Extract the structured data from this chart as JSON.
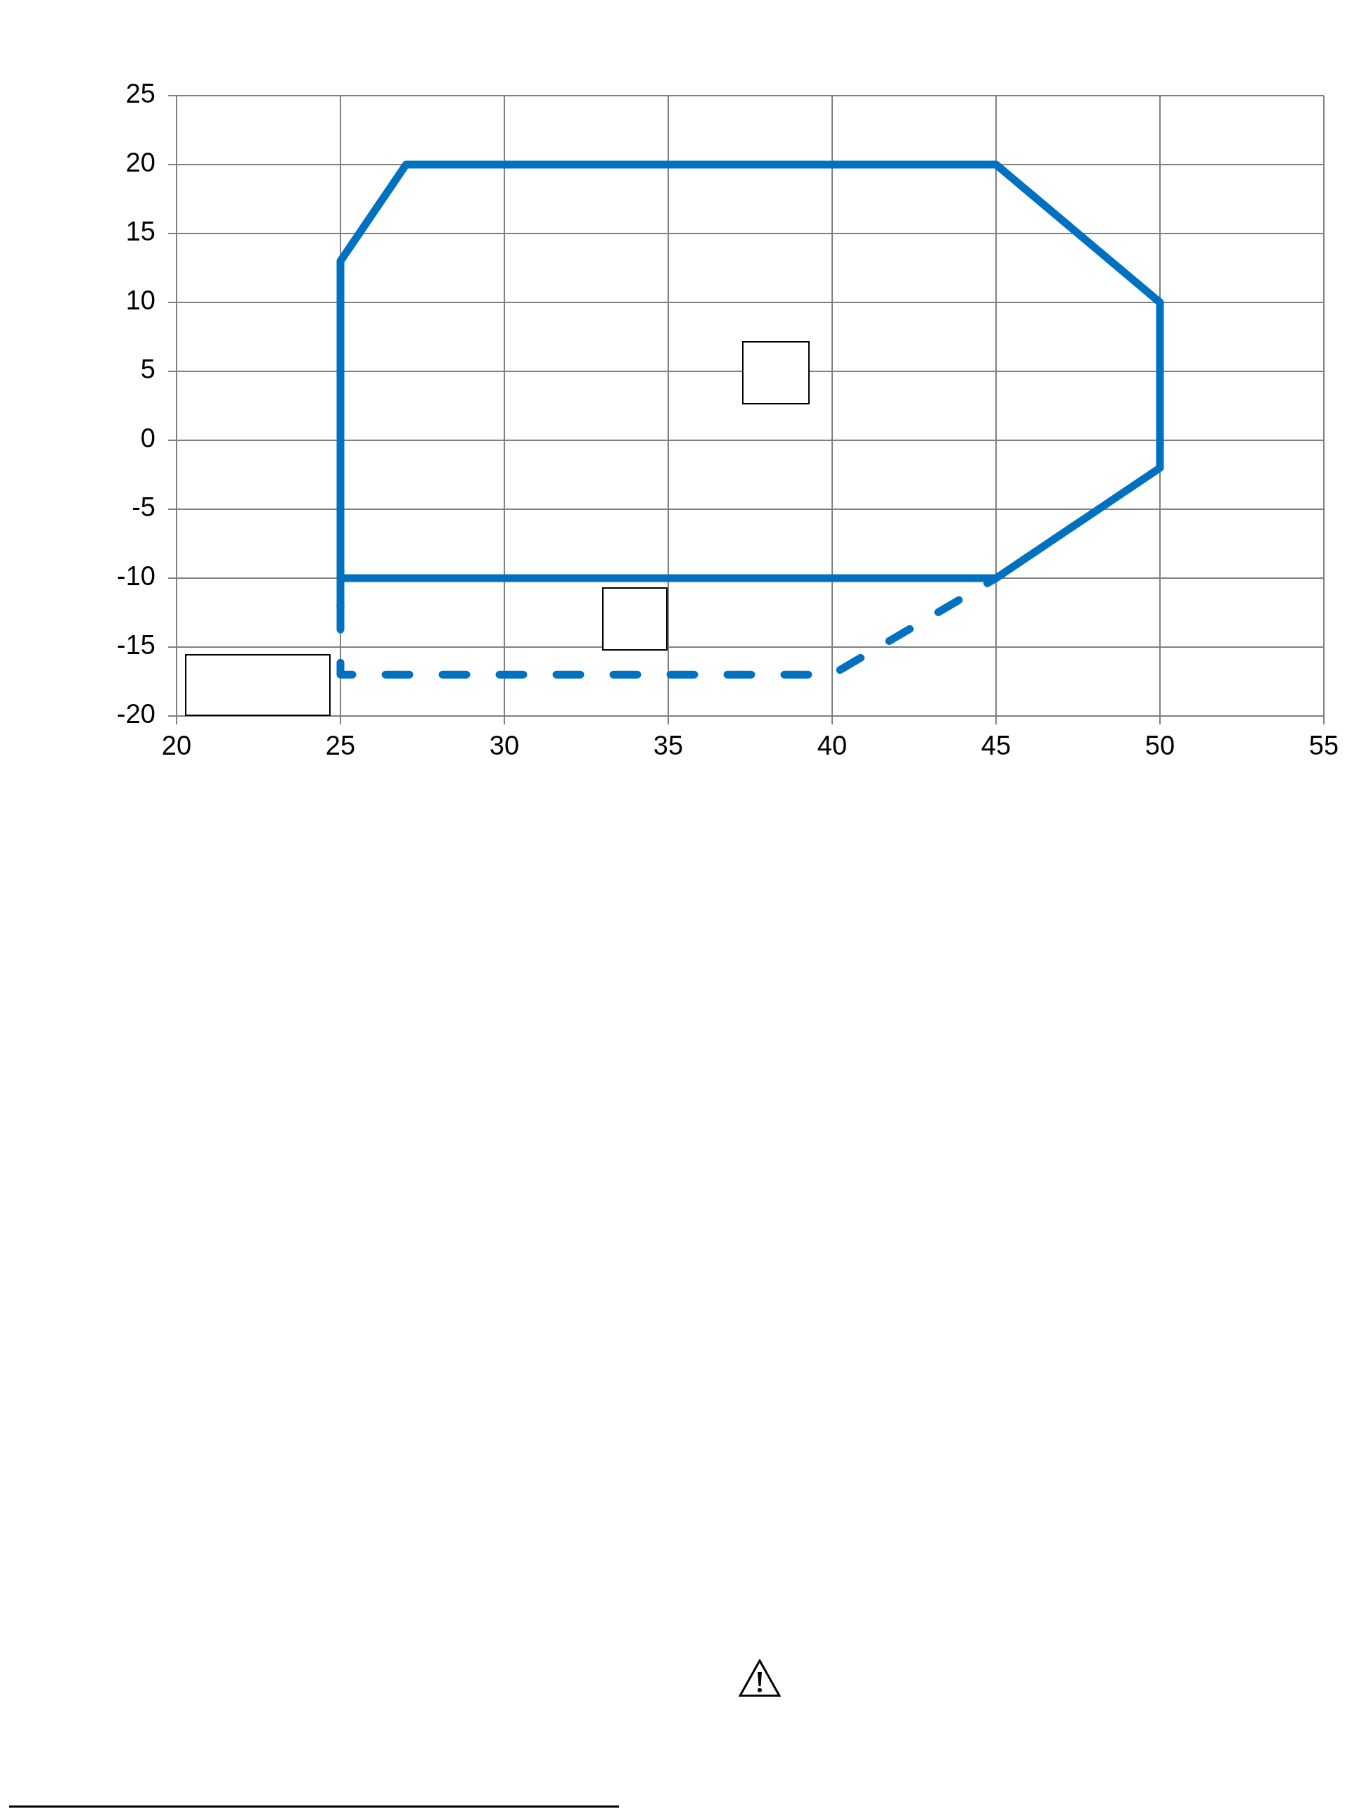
{
  "chart_data": {
    "type": "line",
    "series": [
      {
        "color": "#0070c0",
        "line_style": "solid",
        "x": [
          25,
          25,
          27,
          45,
          50,
          50,
          45,
          25
        ],
        "values": [
          -12,
          13,
          20,
          20,
          10,
          -2,
          -10,
          -10
        ]
      },
      {
        "color": "#0070c0",
        "line_style": "dashed",
        "x": [
          25,
          25,
          40,
          45
        ],
        "values": [
          -12,
          -17,
          -17,
          -10
        ]
      }
    ],
    "xlim": [
      20,
      55
    ],
    "xticks": [
      20,
      25,
      30,
      35,
      40,
      45,
      50,
      55
    ],
    "ylim": [
      -20,
      25
    ],
    "yticks": [
      -20,
      -15,
      -10,
      -5,
      0,
      5,
      10,
      15,
      20,
      25
    ],
    "grid": true,
    "marker": "none"
  }
}
